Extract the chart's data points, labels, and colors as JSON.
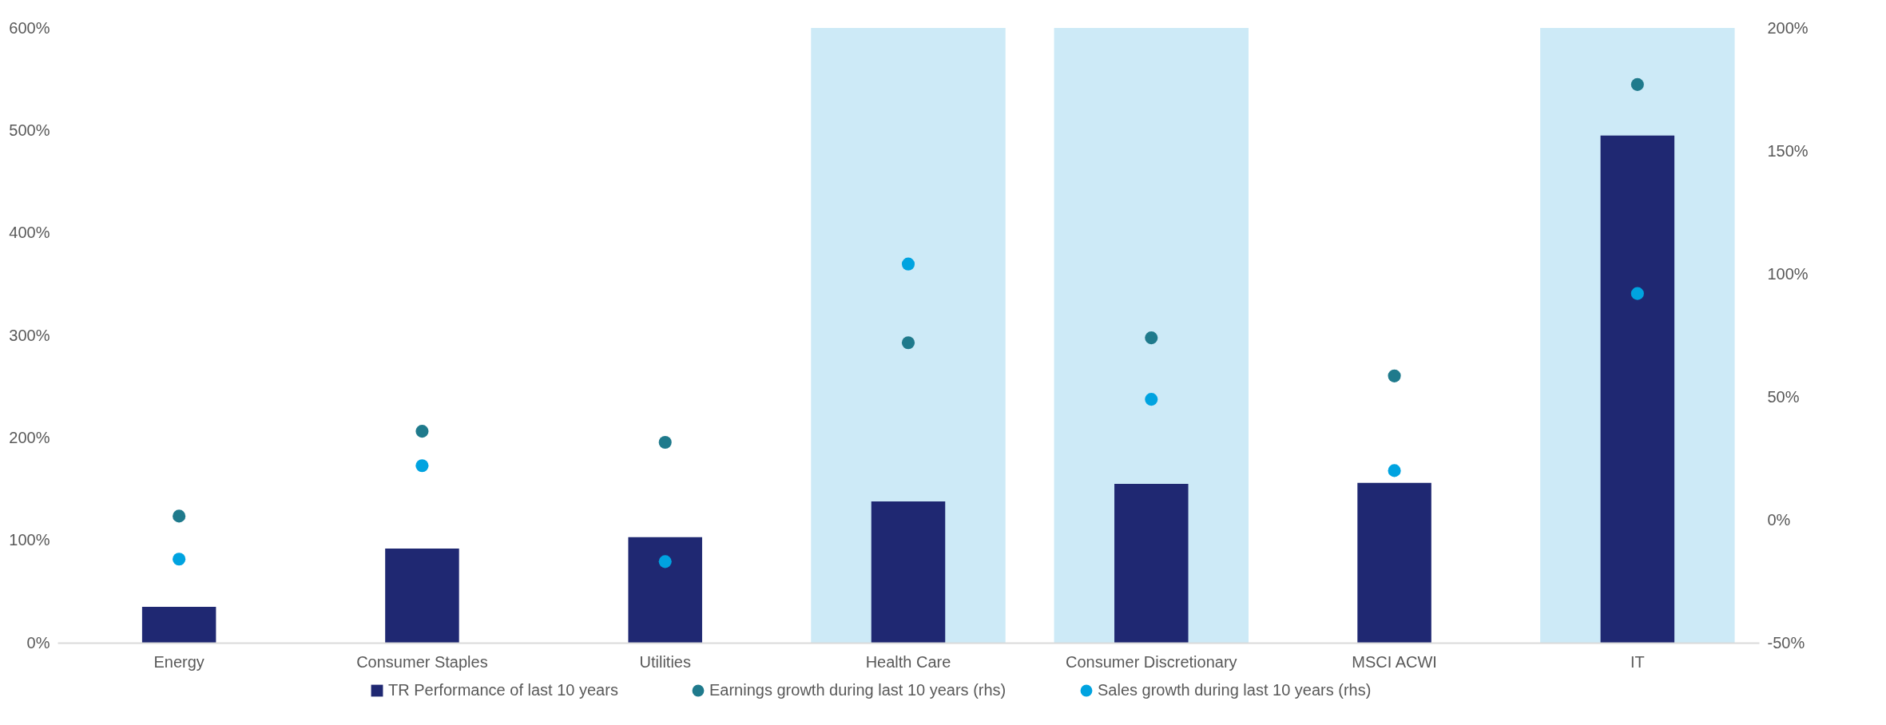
{
  "chart_data": {
    "type": "bar",
    "categories": [
      "Energy",
      "Consumer Staples",
      "Utilities",
      "Health Care",
      "Consumer Discretionary",
      "MSCI ACWI",
      "IT"
    ],
    "series": [
      {
        "name": "TR Performance of last 10 years",
        "color": "#1f2872",
        "values": [
          35,
          92,
          103,
          138,
          155,
          156,
          495
        ]
      },
      {
        "name": "Earnings growth during last 10 years (rhs)",
        "type": "scatter",
        "axis": "y2",
        "color": "#1f7a8c",
        "values": [
          1.5,
          36,
          31.5,
          72,
          74,
          58.5,
          177
        ]
      },
      {
        "name": "Sales growth during last 10 years (rhs)",
        "type": "scatter",
        "axis": "y2",
        "color": "#00a3e0",
        "values": [
          -16,
          22,
          -17,
          104,
          49,
          20,
          92
        ]
      }
    ],
    "ylim": [
      0,
      600
    ],
    "yticks": [
      {
        "value": 0,
        "label": "0%"
      },
      {
        "value": 100,
        "label": "100%"
      },
      {
        "value": 200,
        "label": "200%"
      },
      {
        "value": 300,
        "label": "300%"
      },
      {
        "value": 400,
        "label": "400%"
      },
      {
        "value": 500,
        "label": "500%"
      },
      {
        "value": 600,
        "label": "600%"
      }
    ],
    "y2lim": [
      -50,
      200
    ],
    "y2ticks": [
      {
        "value": -50,
        "label": "-50%"
      },
      {
        "value": 0,
        "label": "0%"
      },
      {
        "value": 50,
        "label": "50%"
      },
      {
        "value": 100,
        "label": "100%"
      },
      {
        "value": 150,
        "label": "150%"
      },
      {
        "value": 200,
        "label": "200%"
      }
    ],
    "bands": [
      {
        "axis": "x",
        "from": "Health Care",
        "to": "Health Care",
        "color": "#cdeaf7"
      },
      {
        "axis": "x",
        "from": "Consumer Discretionary",
        "to": "Consumer Discretionary",
        "color": "#cdeaf7"
      },
      {
        "axis": "x",
        "from": "IT",
        "to": "IT",
        "color": "#cdeaf7"
      }
    ],
    "marker": "circle",
    "grid": false,
    "legend": "bottom"
  }
}
